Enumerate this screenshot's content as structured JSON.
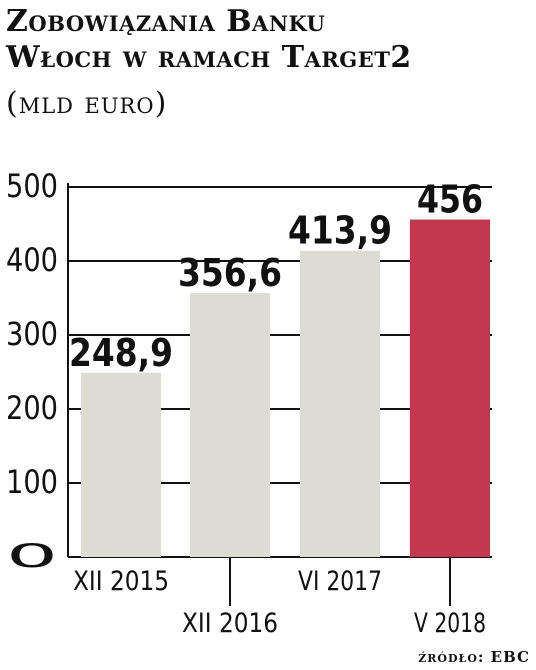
{
  "chart_data": {
    "type": "bar",
    "title_lines": [
      "Zobowiązania Banku",
      "Włoch w ramach Target2"
    ],
    "unit": "(mld euro)",
    "categories": [
      "XII 2015",
      "XII 2016",
      "VI 2017",
      "V 2018"
    ],
    "values": [
      248.9,
      356.6,
      413.9,
      456
    ],
    "value_labels": [
      "248,9",
      "356,6",
      "413,9",
      "456"
    ],
    "y_ticks": [
      "0",
      "100",
      "200",
      "300",
      "400",
      "500"
    ],
    "ylim": [
      0,
      500
    ],
    "grid": true,
    "source": "źródło: EBC",
    "colors": {
      "bar": "#dcdcd2",
      "highlight": "#c2384f",
      "axis": "#111111"
    }
  }
}
